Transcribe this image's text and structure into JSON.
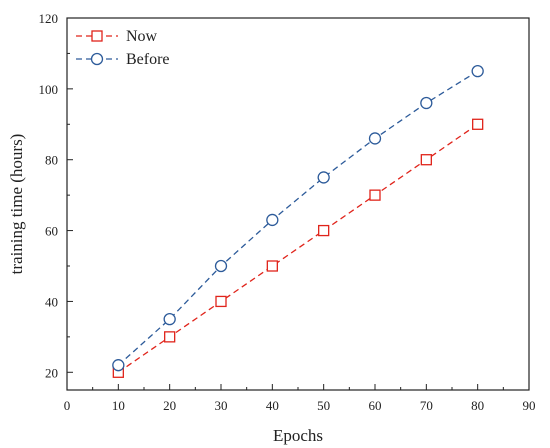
{
  "chart_data": {
    "type": "line",
    "title": "",
    "xlabel": "Epochs",
    "ylabel": "training time (hours)",
    "xlim": [
      0,
      90
    ],
    "ylim": [
      15,
      120
    ],
    "xticks": [
      0,
      10,
      20,
      30,
      40,
      50,
      60,
      70,
      80,
      90
    ],
    "yticks": [
      20,
      40,
      60,
      80,
      100,
      120
    ],
    "grid": false,
    "legend_position": "top-left",
    "series": [
      {
        "name": "Now",
        "color": "#e0241b",
        "marker": "square",
        "line_style": "dashed",
        "x": [
          10,
          20,
          30,
          40,
          50,
          60,
          70,
          80
        ],
        "y": [
          20,
          30,
          40,
          50,
          60,
          70,
          80,
          90
        ]
      },
      {
        "name": "Before",
        "color": "#2d5b9a",
        "marker": "circle",
        "line_style": "dashed",
        "x": [
          10,
          20,
          30,
          40,
          50,
          60,
          70,
          80
        ],
        "y": [
          22,
          35,
          50,
          63,
          75,
          86,
          96,
          105
        ]
      }
    ]
  }
}
